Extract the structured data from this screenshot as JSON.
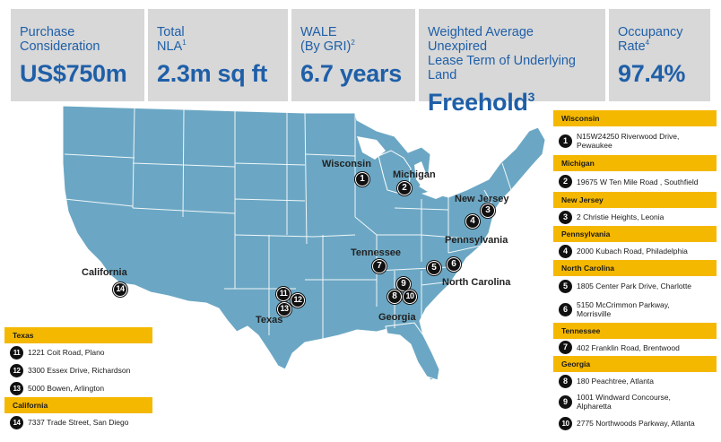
{
  "stats": [
    {
      "label_lines": [
        "Purchase",
        "Consideration"
      ],
      "label_sup": "",
      "value": "US$750m",
      "value_sup": ""
    },
    {
      "label_lines": [
        "Total",
        "NLA"
      ],
      "label_sup": "1",
      "value": "2.3m sq ft",
      "value_sup": ""
    },
    {
      "label_lines": [
        "WALE",
        "(By GRI)"
      ],
      "label_sup": "2",
      "value": "6.7 years",
      "value_sup": ""
    },
    {
      "label_lines": [
        "Weighted Average Unexpired",
        "Lease Term of Underlying Land"
      ],
      "label_sup": "",
      "value": "Freehold",
      "value_sup": "3"
    },
    {
      "label_lines": [
        "Occupancy",
        "Rate"
      ],
      "label_sup": "4",
      "value": "97.4%",
      "value_sup": ""
    }
  ],
  "map": {
    "fill_color": "#6ba7c4",
    "border_color": "#ffffff",
    "state_labels": [
      "Wisconsin",
      "Michigan",
      "New Jersey",
      "Pennsylvania",
      "Tennessee",
      "North Carolina",
      "California",
      "Texas",
      "Georgia"
    ],
    "pins": [
      "1",
      "2",
      "3",
      "4",
      "5",
      "6",
      "7",
      "8",
      "9",
      "10",
      "11",
      "12",
      "13",
      "14"
    ]
  },
  "legend_right": [
    {
      "state": "Wisconsin",
      "items": [
        {
          "num": "1",
          "lines": [
            "N15W24250 Riverwood Drive,",
            "Pewaukee"
          ]
        }
      ]
    },
    {
      "state": "Michigan",
      "items": [
        {
          "num": "2",
          "lines": [
            "19675 W Ten Mile Road , Southfield"
          ]
        }
      ]
    },
    {
      "state": "New Jersey",
      "items": [
        {
          "num": "3",
          "lines": [
            "2 Christie Heights, Leonia"
          ]
        }
      ]
    },
    {
      "state": "Pennsylvania",
      "items": [
        {
          "num": "4",
          "lines": [
            "2000 Kubach Road, Philadelphia"
          ]
        }
      ]
    },
    {
      "state": "North Carolina",
      "items": [
        {
          "num": "5",
          "lines": [
            "1805 Center Park Drive, Charlotte"
          ]
        },
        {
          "num": "6",
          "lines": [
            "5150 McCrimmon Parkway,",
            "Morrisville"
          ]
        }
      ]
    },
    {
      "state": "Tennessee",
      "items": [
        {
          "num": "7",
          "lines": [
            "402 Franklin Road, Brentwood"
          ]
        }
      ]
    },
    {
      "state": "Georgia",
      "items": [
        {
          "num": "8",
          "lines": [
            "180 Peachtree, Atlanta"
          ]
        },
        {
          "num": "9",
          "lines": [
            "1001 Windward Concourse,",
            "Alpharetta"
          ]
        },
        {
          "num": "10",
          "lines": [
            "2775 Northwoods Parkway, Atlanta"
          ]
        }
      ]
    }
  ],
  "legend_left": [
    {
      "state": "Texas",
      "items": [
        {
          "num": "11",
          "lines": [
            "1221 Coit Road, Plano"
          ]
        },
        {
          "num": "12",
          "lines": [
            "3300 Essex Drive, Richardson"
          ]
        },
        {
          "num": "13",
          "lines": [
            "5000 Bowen, Arlington"
          ]
        }
      ]
    },
    {
      "state": "California",
      "items": [
        {
          "num": "14",
          "lines": [
            "7337 Trade Street, San Diego"
          ]
        }
      ]
    }
  ],
  "colors": {
    "accent_blue": "#1f5fa8",
    "box_gray": "#d8d8d8",
    "legend_header": "#f5b800"
  }
}
